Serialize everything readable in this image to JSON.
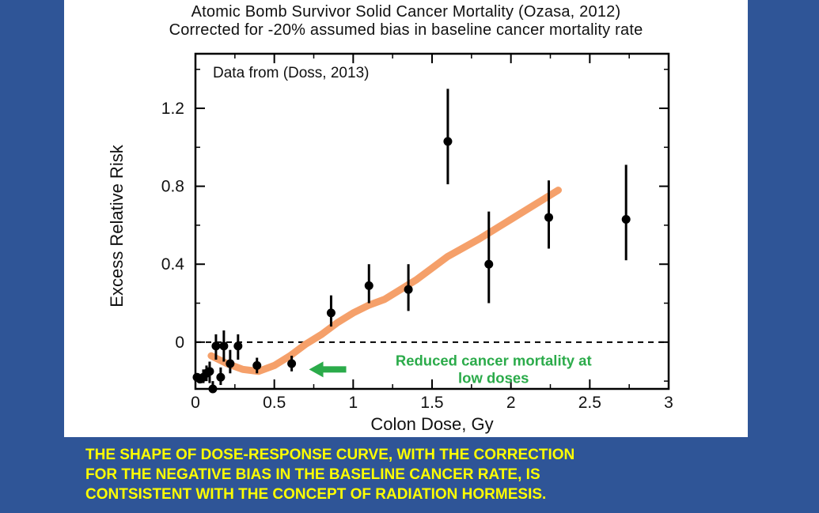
{
  "title_line1": "Atomic Bomb Survivor Solid Cancer Mortality (Ozasa, 2012)",
  "title_line2": "Corrected for -20% assumed bias in baseline cancer mortality rate",
  "caption": [
    "THE SHAPE OF DOSE-RESPONSE CURVE, WITH THE CORRECTION",
    "FOR THE NEGATIVE BIAS IN THE BASELINE CANCER RATE, IS",
    "CONTSISTENT WITH THE CONCEPT OF RADIATION HORMESIS."
  ],
  "colors": {
    "background": "#2f5597",
    "caption": "#ffff00",
    "fit_curve": "#f5a06a",
    "annotation": "#2bab4a",
    "points": "#000000"
  },
  "chart_data": {
    "type": "scatter",
    "xlabel": "Colon Dose, Gy",
    "ylabel": "Excess Relative Risk",
    "xlim": [
      0,
      3
    ],
    "ylim": [
      -0.24,
      1.48
    ],
    "xticks": [
      0,
      0.5,
      1,
      1.5,
      2,
      2.5,
      3
    ],
    "xtick_labels": [
      "0",
      "0.5",
      "1",
      "1.5",
      "2",
      "2.5",
      "3"
    ],
    "yticks": [
      0,
      0.4,
      0.8,
      1.2
    ],
    "ytick_labels": [
      "0",
      "0.4",
      "0.8",
      "1.2"
    ],
    "reference_line": {
      "y": 0,
      "style": "dashed"
    },
    "inset_label": "Data from (Doss, 2013)",
    "annotation": {
      "text_lines": [
        "Reduced cancer mortality at",
        "low doses"
      ],
      "arrow_points_to": {
        "x": 0.72,
        "y": -0.14
      }
    },
    "points": [
      {
        "x": 0.01,
        "y": -0.18,
        "lo": -0.2,
        "hi": -0.16
      },
      {
        "x": 0.03,
        "y": -0.19,
        "lo": -0.21,
        "hi": -0.17
      },
      {
        "x": 0.05,
        "y": -0.18,
        "lo": -0.21,
        "hi": -0.14
      },
      {
        "x": 0.07,
        "y": -0.16,
        "lo": -0.2,
        "hi": -0.12
      },
      {
        "x": 0.09,
        "y": -0.15,
        "lo": -0.21,
        "hi": -0.1
      },
      {
        "x": 0.11,
        "y": -0.24,
        "lo": -0.26,
        "hi": -0.2
      },
      {
        "x": 0.13,
        "y": -0.02,
        "lo": -0.09,
        "hi": 0.04
      },
      {
        "x": 0.16,
        "y": -0.18,
        "lo": -0.22,
        "hi": -0.13
      },
      {
        "x": 0.18,
        "y": -0.02,
        "lo": -0.1,
        "hi": 0.06
      },
      {
        "x": 0.22,
        "y": -0.11,
        "lo": -0.16,
        "hi": -0.04
      },
      {
        "x": 0.27,
        "y": -0.02,
        "lo": -0.09,
        "hi": 0.04
      },
      {
        "x": 0.39,
        "y": -0.12,
        "lo": -0.16,
        "hi": -0.08
      },
      {
        "x": 0.61,
        "y": -0.11,
        "lo": -0.15,
        "hi": -0.07
      },
      {
        "x": 0.86,
        "y": 0.15,
        "lo": 0.08,
        "hi": 0.24
      },
      {
        "x": 1.1,
        "y": 0.29,
        "lo": 0.2,
        "hi": 0.4
      },
      {
        "x": 1.35,
        "y": 0.27,
        "lo": 0.16,
        "hi": 0.4
      },
      {
        "x": 1.6,
        "y": 1.03,
        "lo": 0.81,
        "hi": 1.3
      },
      {
        "x": 1.86,
        "y": 0.4,
        "lo": 0.2,
        "hi": 0.67
      },
      {
        "x": 2.24,
        "y": 0.64,
        "lo": 0.48,
        "hi": 0.83
      },
      {
        "x": 2.73,
        "y": 0.63,
        "lo": 0.42,
        "hi": 0.91
      }
    ],
    "fit_curve": {
      "x": [
        0.1,
        0.2,
        0.3,
        0.4,
        0.5,
        0.6,
        0.7,
        0.8,
        0.9,
        1.0,
        1.1,
        1.2,
        1.4,
        1.6,
        1.8,
        2.0,
        2.2,
        2.3
      ],
      "y": [
        -0.07,
        -0.11,
        -0.14,
        -0.15,
        -0.12,
        -0.07,
        -0.01,
        0.04,
        0.1,
        0.15,
        0.19,
        0.22,
        0.32,
        0.44,
        0.53,
        0.63,
        0.73,
        0.78
      ]
    }
  }
}
